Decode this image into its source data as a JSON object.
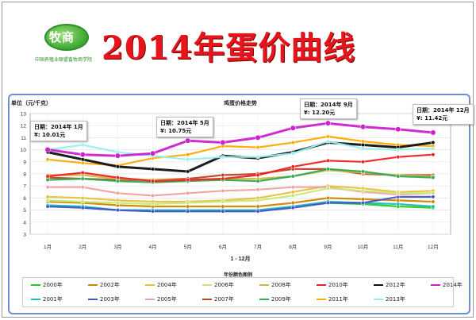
{
  "logo": {
    "text": "牧商",
    "subtitle": "中国养殖业联盟畜牧商学院"
  },
  "banner": {
    "title": "2014年蛋价曲线"
  },
  "chart_data": {
    "type": "line",
    "title": "鸡蛋价格走势",
    "ylabel": "单位（元/千克）",
    "xlabel": "1 - 12月",
    "ylim": [
      3,
      13
    ],
    "y_ticks": [
      "3",
      "4",
      "5",
      "6",
      "7",
      "8",
      "9",
      "10",
      "11",
      "12",
      "13"
    ],
    "categories": [
      "1月",
      "2月",
      "3月",
      "4月",
      "5月",
      "6月",
      "7月",
      "8月",
      "9月",
      "10月",
      "11月",
      "12月"
    ],
    "legend_title": "年份颜色图例",
    "series": [
      {
        "name": "2000年",
        "color": "#22cc22",
        "values": [
          5.3,
          5.2,
          5.0,
          4.9,
          4.9,
          4.9,
          4.9,
          5.3,
          5.6,
          5.5,
          5.3,
          5.2
        ]
      },
      {
        "name": "2001年",
        "color": "#22bbbb",
        "values": [
          5.4,
          5.3,
          5.0,
          5.0,
          5.0,
          5.0,
          5.0,
          5.3,
          5.7,
          5.6,
          5.5,
          5.3
        ]
      },
      {
        "name": "2002年",
        "color": "#cc8800",
        "values": [
          5.7,
          5.6,
          5.4,
          5.3,
          5.3,
          5.3,
          5.3,
          5.6,
          6.0,
          5.9,
          5.8,
          5.7
        ]
      },
      {
        "name": "2003年",
        "color": "#4455cc",
        "values": [
          5.3,
          5.2,
          5.0,
          4.9,
          4.9,
          4.9,
          4.9,
          5.2,
          5.6,
          5.6,
          6.1,
          6.1
        ]
      },
      {
        "name": "2004年",
        "color": "#e8c040",
        "values": [
          6.1,
          6.0,
          5.8,
          5.7,
          5.7,
          5.8,
          6.0,
          6.5,
          7.0,
          6.8,
          6.5,
          6.6
        ]
      },
      {
        "name": "2005年",
        "color": "#f0a0a0",
        "values": [
          6.9,
          6.9,
          6.4,
          6.2,
          6.4,
          6.6,
          6.7,
          6.9,
          6.9,
          6.5,
          6.3,
          6.4
        ]
      },
      {
        "name": "2006年",
        "color": "#c8e878",
        "values": [
          5.8,
          5.7,
          5.6,
          5.5,
          5.6,
          5.7,
          5.8,
          6.2,
          6.8,
          6.6,
          6.4,
          6.4
        ]
      },
      {
        "name": "2007年",
        "color": "#bb4422",
        "values": [
          7.7,
          7.6,
          7.5,
          7.5,
          7.6,
          7.9,
          8.0,
          8.4,
          8.4,
          8.0,
          7.9,
          7.9
        ]
      },
      {
        "name": "2008年",
        "color": "#ccbb44",
        "values": [
          7.9,
          7.9,
          7.6,
          7.5,
          7.5,
          7.6,
          7.6,
          7.8,
          8.3,
          8.1,
          7.9,
          7.8
        ]
      },
      {
        "name": "2009年",
        "color": "#33aa55",
        "values": [
          7.5,
          7.6,
          7.4,
          7.3,
          7.4,
          7.5,
          7.4,
          7.8,
          8.4,
          8.2,
          7.8,
          7.7
        ]
      },
      {
        "name": "2010年",
        "color": "#ee2222",
        "values": [
          7.8,
          8.1,
          7.7,
          7.4,
          7.5,
          7.6,
          7.9,
          8.6,
          9.1,
          9.0,
          9.4,
          9.6
        ]
      },
      {
        "name": "2011年",
        "color": "#ffaa00",
        "values": [
          9.2,
          8.9,
          8.7,
          9.3,
          9.6,
          10.3,
          10.2,
          10.6,
          11.1,
          10.7,
          10.4,
          10.3
        ]
      },
      {
        "name": "2012年",
        "color": "#111111",
        "values": [
          9.8,
          9.2,
          8.6,
          8.4,
          8.2,
          9.5,
          9.3,
          9.8,
          10.6,
          10.4,
          10.2,
          10.6
        ]
      },
      {
        "name": "2013年",
        "color": "#99eeee",
        "values": [
          10.0,
          10.4,
          9.8,
          9.5,
          9.2,
          9.4,
          9.4,
          9.7,
          10.7,
          10.1,
          10.0,
          10.1
        ]
      },
      {
        "name": "2014年",
        "color": "#cc22cc",
        "values": [
          10.01,
          9.6,
          9.5,
          9.7,
          10.75,
          10.6,
          11.0,
          11.8,
          12.2,
          11.9,
          11.7,
          11.42
        ]
      }
    ],
    "callouts": [
      {
        "line1": "日期：2014年 1月",
        "line2": "¥: 10.01元"
      },
      {
        "line1": "日期：2014年 5月",
        "line2": "¥: 10.75元"
      },
      {
        "line1": "日期：2014年 9月",
        "line2": "¥: 12.20元"
      },
      {
        "line1": "日期：2014年 12月",
        "line2": "¥: 11.42元"
      }
    ]
  }
}
